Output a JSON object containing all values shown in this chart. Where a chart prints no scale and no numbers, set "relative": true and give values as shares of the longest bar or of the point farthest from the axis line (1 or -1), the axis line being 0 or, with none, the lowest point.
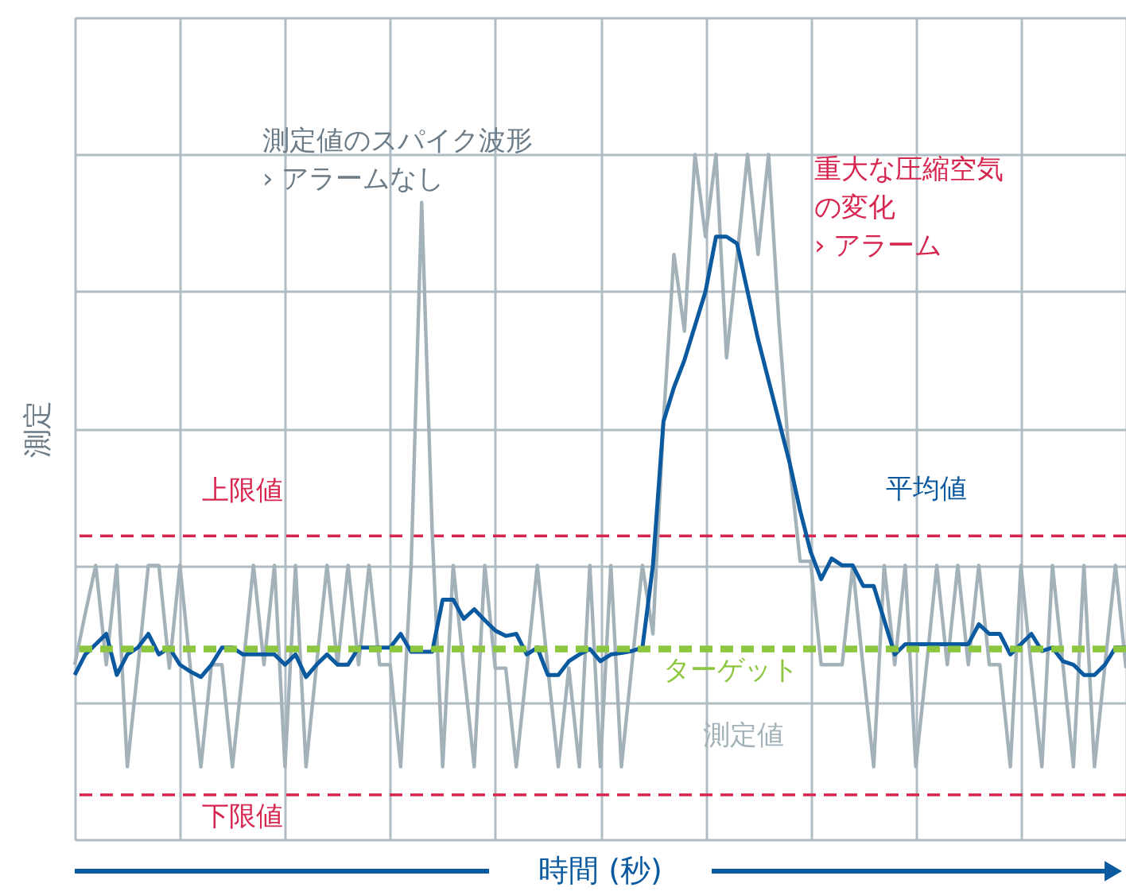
{
  "chart_data": {
    "type": "line",
    "relative": true,
    "xlabel": "時間 (秒)",
    "ylabel": "測定",
    "grid": true,
    "legend": false,
    "marker": "none",
    "line_style": "solid",
    "categories": [
      null,
      null,
      null,
      null,
      null,
      null,
      null,
      null,
      null,
      null,
      null,
      null,
      null,
      null,
      null,
      null,
      null,
      null,
      null,
      null,
      null,
      null,
      null,
      null,
      null,
      null,
      null,
      null,
      null,
      null,
      null,
      null,
      null,
      null,
      null,
      null,
      null,
      null,
      null,
      null,
      null,
      null,
      null,
      null,
      null,
      null,
      null,
      null,
      null,
      null,
      null,
      null,
      null,
      null,
      null,
      null,
      null,
      null,
      null,
      null,
      null,
      null,
      null,
      null,
      null,
      null,
      null,
      null,
      null,
      null,
      null,
      null,
      null,
      null,
      null,
      null,
      null,
      null,
      null,
      null,
      null,
      null,
      null,
      null,
      null,
      null,
      null,
      null,
      null,
      null,
      null,
      null,
      null,
      null,
      null,
      null,
      null,
      null,
      null,
      null,
      null
    ],
    "series": [
      {
        "name": "測定値",
        "color": "#a3b1b9",
        "values": [
          0.255,
          0.33,
          0.4,
          0.255,
          0.4,
          0.106,
          0.25,
          0.4,
          0.4,
          0.25,
          0.4,
          0.25,
          0.106,
          0.255,
          0.255,
          0.106,
          0.25,
          0.4,
          0.255,
          0.4,
          0.106,
          0.4,
          0.106,
          0.255,
          0.4,
          0.255,
          0.4,
          0.255,
          0.4,
          0.255,
          0.255,
          0.106,
          0.4,
          0.93,
          0.45,
          0.106,
          0.4,
          0.25,
          0.106,
          0.4,
          0.25,
          0.25,
          0.106,
          0.25,
          0.4,
          0.25,
          0.106,
          0.25,
          0.106,
          0.4,
          0.106,
          0.4,
          0.106,
          0.255,
          0.4,
          0.3,
          0.61,
          0.854,
          0.742,
          1.0,
          0.88,
          1.0,
          0.703,
          0.85,
          1.0,
          0.854,
          1.0,
          0.75,
          0.55,
          0.406,
          0.406,
          0.255,
          0.255,
          0.255,
          0.4,
          0.25,
          0.106,
          0.4,
          0.255,
          0.4,
          0.106,
          0.25,
          0.4,
          0.255,
          0.4,
          0.255,
          0.4,
          0.255,
          0.255,
          0.106,
          0.4,
          0.25,
          0.106,
          0.4,
          0.255,
          0.106,
          0.4,
          0.106,
          0.255,
          0.4,
          0.25
        ]
      },
      {
        "name": "平均値",
        "color": "#0b5aa0",
        "values": [
          0.24,
          0.27,
          0.285,
          0.3,
          0.24,
          0.27,
          0.28,
          0.3,
          0.27,
          0.28,
          0.255,
          0.245,
          0.237,
          0.255,
          0.28,
          0.28,
          0.27,
          0.27,
          0.27,
          0.27,
          0.255,
          0.27,
          0.237,
          0.255,
          0.27,
          0.255,
          0.255,
          0.28,
          0.28,
          0.28,
          0.28,
          0.3,
          0.274,
          0.274,
          0.274,
          0.35,
          0.35,
          0.322,
          0.336,
          0.32,
          0.305,
          0.297,
          0.3,
          0.27,
          0.28,
          0.24,
          0.24,
          0.26,
          0.27,
          0.278,
          0.26,
          0.27,
          0.272,
          0.275,
          0.28,
          0.4,
          0.61,
          0.66,
          0.7,
          0.75,
          0.8,
          0.88,
          0.88,
          0.87,
          0.8,
          0.73,
          0.67,
          0.61,
          0.55,
          0.48,
          0.42,
          0.38,
          0.41,
          0.4,
          0.4,
          0.37,
          0.37,
          0.32,
          0.27,
          0.285,
          0.285,
          0.285,
          0.285,
          0.285,
          0.285,
          0.285,
          0.314,
          0.3,
          0.3,
          0.27,
          0.285,
          0.3,
          0.275,
          0.28,
          0.26,
          0.255,
          0.24,
          0.24,
          0.255,
          0.28,
          0.28
        ]
      }
    ],
    "ref_lines": [
      {
        "axis": "y",
        "value": 0.443,
        "label": "上限値",
        "color": "#d6264f",
        "line_style": "dashed"
      },
      {
        "axis": "y",
        "value": 0.278,
        "label": "ターゲット",
        "color": "#8cc63f",
        "line_style": "dashed"
      },
      {
        "axis": "y",
        "value": 0.065,
        "label": "下限値",
        "color": "#d6264f",
        "line_style": "dashed"
      }
    ],
    "annotations": [
      "測定値のスパイク波形",
      "› アラームなし",
      "重大な圧縮空気",
      "の変化",
      "› アラーム"
    ]
  }
}
